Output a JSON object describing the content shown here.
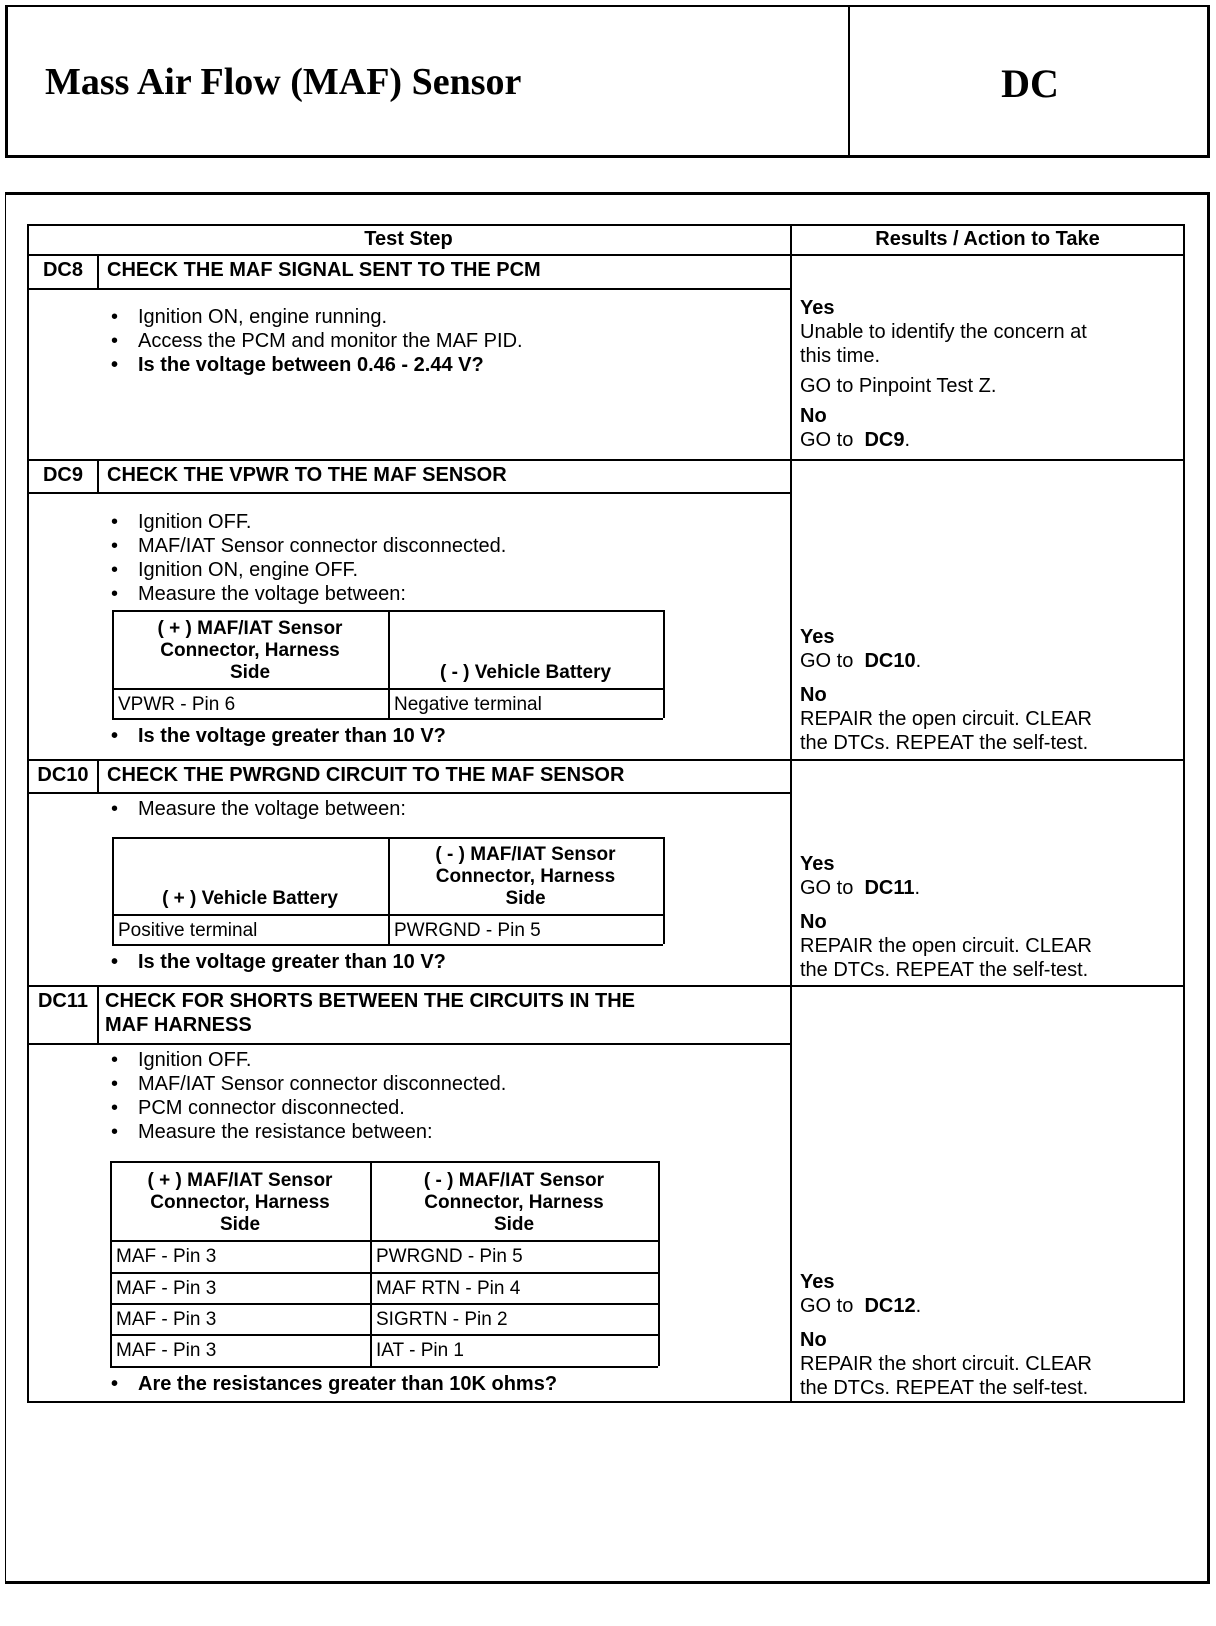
{
  "header": {
    "title": "Mass Air Flow (MAF) Sensor",
    "code": "DC"
  },
  "table": {
    "col_test_step": "Test Step",
    "col_results": "Results / Action to Take"
  },
  "steps": [
    {
      "id": "DC8",
      "title": "CHECK THE MAF SIGNAL SENT TO THE PCM",
      "bullets": [
        "Ignition ON, engine running.",
        "Access the PCM and monitor the MAF PID."
      ],
      "question": "Is the voltage between 0.46 - 2.44 V?",
      "yes_label": "Yes",
      "yes_text": [
        "Unable to identify the concern at",
        "this time."
      ],
      "yes_extra": "GO to Pinpoint Test Z.",
      "no_label": "No",
      "no_prefix": "GO to",
      "no_target": "DC9"
    },
    {
      "id": "DC9",
      "title": "CHECK THE VPWR TO THE MAF SENSOR",
      "bullets": [
        "Ignition OFF.",
        "MAF/IAT Sensor connector disconnected.",
        "Ignition ON, engine OFF.",
        "Measure the voltage between:"
      ],
      "table": {
        "headers": [
          [
            "( + ) MAF/IAT Sensor",
            "Connector, Harness",
            "Side"
          ],
          [
            "( - ) Vehicle Battery"
          ]
        ],
        "rows": [
          [
            "VPWR - Pin 6",
            "Negative terminal"
          ]
        ]
      },
      "question": "Is the voltage greater than 10 V?",
      "yes_label": "Yes",
      "yes_prefix": "GO to",
      "yes_target": "DC10",
      "no_label": "No",
      "no_text": [
        "REPAIR the open circuit. CLEAR",
        "the DTCs. REPEAT the self-test."
      ]
    },
    {
      "id": "DC10",
      "title": "CHECK THE PWRGND CIRCUIT TO THE MAF SENSOR",
      "bullets": [
        "Measure the voltage between:"
      ],
      "table": {
        "headers": [
          [
            "( + ) Vehicle Battery"
          ],
          [
            "( - ) MAF/IAT Sensor",
            "Connector, Harness",
            "Side"
          ]
        ],
        "rows": [
          [
            "Positive terminal",
            "PWRGND - Pin 5"
          ]
        ]
      },
      "question": "Is the voltage greater than 10 V?",
      "yes_label": "Yes",
      "yes_prefix": "GO to",
      "yes_target": "DC11",
      "no_label": "No",
      "no_text": [
        "REPAIR the open circuit. CLEAR",
        "the DTCs. REPEAT the self-test."
      ]
    },
    {
      "id": "DC11",
      "title": [
        "CHECK FOR SHORTS BETWEEN THE CIRCUITS IN THE",
        "MAF HARNESS"
      ],
      "bullets": [
        "Ignition OFF.",
        "MAF/IAT Sensor connector disconnected.",
        "PCM connector disconnected.",
        "Measure the resistance between:"
      ],
      "table": {
        "headers": [
          [
            "( + ) MAF/IAT Sensor",
            "Connector, Harness",
            "Side"
          ],
          [
            "( - ) MAF/IAT Sensor",
            "Connector, Harness",
            "Side"
          ]
        ],
        "rows": [
          [
            "MAF - Pin 3",
            "PWRGND - Pin 5"
          ],
          [
            "MAF - Pin 3",
            "MAF RTN - Pin 4"
          ],
          [
            "MAF - Pin 3",
            "SIGRTN - Pin 2"
          ],
          [
            "MAF - Pin 3",
            "IAT - Pin 1"
          ]
        ]
      },
      "question": "Are the resistances greater than 10K ohms?",
      "yes_label": "Yes",
      "yes_prefix": "GO to",
      "yes_target": "DC12",
      "no_label": "No",
      "no_text": [
        "REPAIR the short circuit. CLEAR",
        "the DTCs. REPEAT the self-test."
      ]
    }
  ]
}
